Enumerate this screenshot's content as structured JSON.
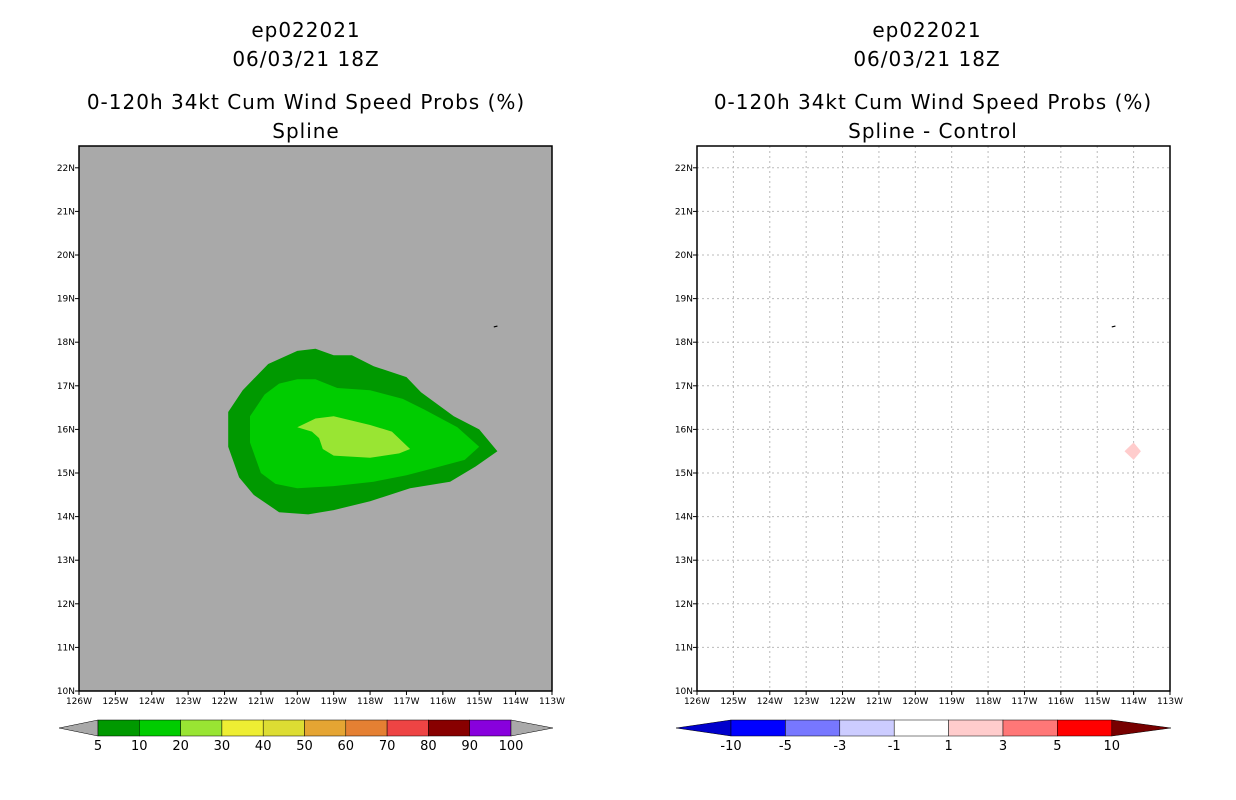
{
  "panels": [
    {
      "storm": "ep022021",
      "datetime": "06/03/21 18Z",
      "title": "0-120h 34kt Cum Wind Speed Probs (%)",
      "subtitle": "Spline"
    },
    {
      "storm": "ep022021",
      "datetime": "06/03/21 18Z",
      "title": "0-120h 34kt Cum Wind Speed Probs (%)",
      "subtitle": "Spline - Control"
    }
  ],
  "chart_data": [
    {
      "type": "heatmap",
      "name": "Spline",
      "title": "0-120h 34kt Cum Wind Speed Probs (%)",
      "subtitle": "Spline",
      "xlim": [
        -126,
        -113
      ],
      "ylim": [
        10,
        22.5
      ],
      "x_ticks": [
        "126W",
        "125W",
        "124W",
        "123W",
        "122W",
        "121W",
        "120W",
        "119W",
        "118W",
        "117W",
        "116W",
        "115W",
        "114W",
        "113W"
      ],
      "y_ticks": [
        "10N",
        "11N",
        "12N",
        "13N",
        "14N",
        "15N",
        "16N",
        "17N",
        "18N",
        "19N",
        "20N",
        "21N",
        "22N"
      ],
      "grid": false,
      "background_color": "#a9a9a9",
      "contours": [
        {
          "level": 5,
          "color": "#009900",
          "polygon": [
            [
              -120.0,
              17.8
            ],
            [
              -119.5,
              17.85
            ],
            [
              -119.0,
              17.7
            ],
            [
              -118.5,
              17.7
            ],
            [
              -117.9,
              17.45
            ],
            [
              -117.0,
              17.2
            ],
            [
              -116.6,
              16.85
            ],
            [
              -115.7,
              16.3
            ],
            [
              -115.0,
              16.0
            ],
            [
              -114.5,
              15.5
            ],
            [
              -115.1,
              15.15
            ],
            [
              -115.8,
              14.8
            ],
            [
              -116.9,
              14.65
            ],
            [
              -118.0,
              14.35
            ],
            [
              -119.0,
              14.15
            ],
            [
              -119.7,
              14.05
            ],
            [
              -120.5,
              14.1
            ],
            [
              -121.2,
              14.5
            ],
            [
              -121.6,
              14.9
            ],
            [
              -121.9,
              15.6
            ],
            [
              -121.9,
              16.4
            ],
            [
              -121.5,
              16.9
            ],
            [
              -120.8,
              17.5
            ]
          ]
        },
        {
          "level": 10,
          "color": "#00cc00",
          "polygon": [
            [
              -120.0,
              17.15
            ],
            [
              -119.5,
              17.15
            ],
            [
              -118.9,
              16.95
            ],
            [
              -118.0,
              16.9
            ],
            [
              -117.1,
              16.7
            ],
            [
              -116.5,
              16.45
            ],
            [
              -115.6,
              16.05
            ],
            [
              -115.0,
              15.6
            ],
            [
              -115.4,
              15.3
            ],
            [
              -116.3,
              15.1
            ],
            [
              -117.0,
              14.95
            ],
            [
              -117.9,
              14.8
            ],
            [
              -119.0,
              14.7
            ],
            [
              -120.0,
              14.65
            ],
            [
              -120.6,
              14.75
            ],
            [
              -121.0,
              15.0
            ],
            [
              -121.3,
              15.7
            ],
            [
              -121.3,
              16.3
            ],
            [
              -120.9,
              16.8
            ],
            [
              -120.5,
              17.05
            ]
          ]
        },
        {
          "level": 20,
          "color": "#99e533",
          "polygon": [
            [
              -120.0,
              16.05
            ],
            [
              -119.5,
              16.25
            ],
            [
              -119.0,
              16.3
            ],
            [
              -118.0,
              16.1
            ],
            [
              -117.4,
              15.95
            ],
            [
              -116.9,
              15.55
            ],
            [
              -117.2,
              15.45
            ],
            [
              -118.0,
              15.35
            ],
            [
              -119.0,
              15.4
            ],
            [
              -119.3,
              15.55
            ],
            [
              -119.4,
              15.8
            ],
            [
              -119.6,
              15.95
            ]
          ]
        }
      ],
      "colorbar": {
        "labels": [
          "5",
          "10",
          "20",
          "30",
          "40",
          "50",
          "60",
          "70",
          "80",
          "90",
          "100"
        ],
        "colors": [
          "#009900",
          "#00cc00",
          "#99e533",
          "#eeee33",
          "#dddd33",
          "#e5a533",
          "#e58033",
          "#ee4444",
          "#880000",
          "#8800dd"
        ]
      }
    },
    {
      "type": "heatmap",
      "name": "Spline - Control",
      "title": "0-120h 34kt Cum Wind Speed Probs (%)",
      "subtitle": "Spline - Control",
      "xlim": [
        -126,
        -113
      ],
      "ylim": [
        10,
        22.5
      ],
      "x_ticks": [
        "126W",
        "125W",
        "124W",
        "123W",
        "122W",
        "121W",
        "120W",
        "119W",
        "118W",
        "117W",
        "116W",
        "115W",
        "114W",
        "113W"
      ],
      "y_ticks": [
        "10N",
        "11N",
        "12N",
        "13N",
        "14N",
        "15N",
        "16N",
        "17N",
        "18N",
        "19N",
        "20N",
        "21N",
        "22N"
      ],
      "grid": true,
      "background_color": "#ffffff",
      "contours": [
        {
          "level": 1,
          "color": "#ffcccc",
          "polygon": [
            [
              -114.0,
              15.7
            ],
            [
              -113.8,
              15.5
            ],
            [
              -114.0,
              15.3
            ],
            [
              -114.25,
              15.5
            ]
          ]
        }
      ],
      "colorbar": {
        "labels": [
          "-10",
          "-5",
          "-3",
          "-1",
          "1",
          "3",
          "5",
          "10"
        ],
        "colors": [
          "#0000cc",
          "#0000ff",
          "#7777ff",
          "#ccccff",
          "#ffffff",
          "#ffcccc",
          "#ff7777",
          "#ff0000",
          "#770000"
        ]
      }
    }
  ]
}
